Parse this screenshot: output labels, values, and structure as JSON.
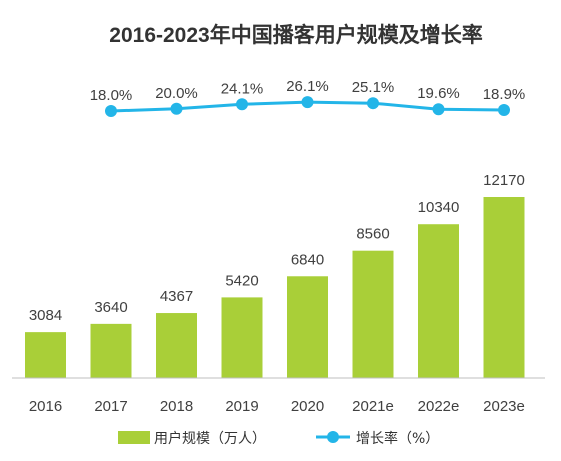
{
  "chart_data": {
    "type": "bar",
    "title": "2016-2023年中国播客用户规模及增长率",
    "categories": [
      "2016",
      "2017",
      "2018",
      "2019",
      "2020",
      "2021e",
      "2022e",
      "2023e"
    ],
    "series": [
      {
        "name": "用户规模（万人）",
        "type": "bar",
        "color": "#a9cf38",
        "values": [
          3084,
          3640,
          4367,
          5420,
          6840,
          8560,
          10340,
          12170
        ],
        "labels": [
          "3084",
          "3640",
          "4367",
          "5420",
          "6840",
          "8560",
          "10340",
          "12170"
        ]
      },
      {
        "name": "增长率（%）",
        "type": "line",
        "color": "#23b5e8",
        "values": [
          null,
          18.0,
          20.0,
          24.1,
          26.1,
          25.1,
          19.6,
          18.9
        ],
        "labels": [
          "",
          "18.0%",
          "20.0%",
          "24.1%",
          "26.1%",
          "25.1%",
          "19.6%",
          "18.9%"
        ]
      }
    ],
    "legend_position": "bottom",
    "grid": false,
    "axis_color": "#bfbfbf",
    "text_color": "#404040"
  }
}
